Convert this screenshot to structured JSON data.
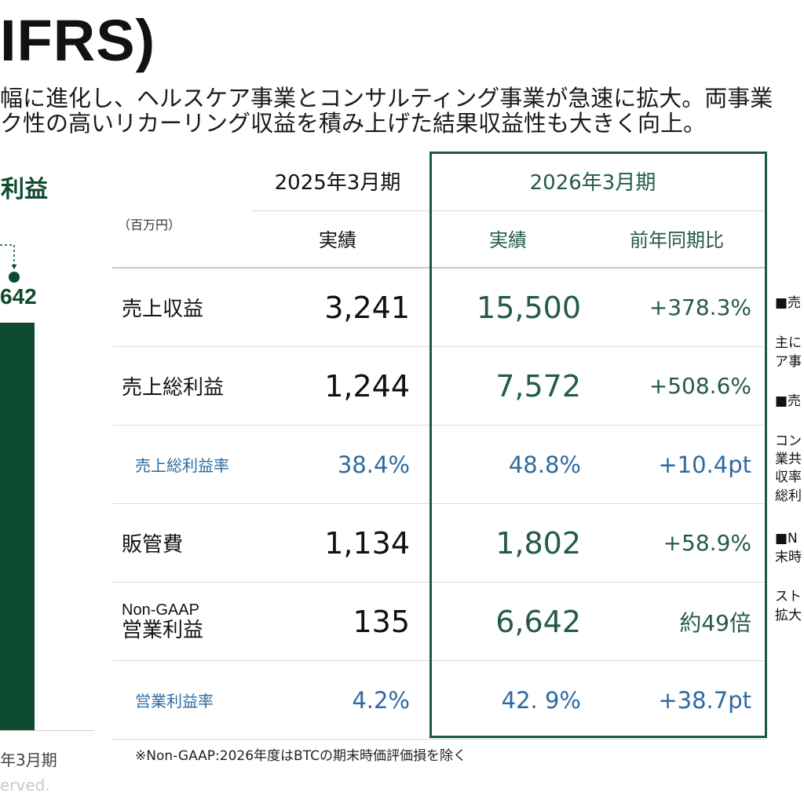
{
  "title": "IFRS)",
  "summary": {
    "line1": "幅に進化し、ヘルスケア事業とコンサルティング事業が急速に拡大。両事業",
    "line2": "ク性の高いリカーリング収益を積み上げた結果収益性も大きく向上。"
  },
  "left_chart": {
    "heading": "利益",
    "value_label": "642",
    "period_label": "年3月期",
    "copyright": "erved."
  },
  "table": {
    "unit": "（百万円）",
    "prev_period": "2025年3月期",
    "curr_period": "2026年3月期",
    "prev_actual": "実績",
    "curr_actual": "実績",
    "yoy_header": "前年同期比",
    "rows": [
      {
        "label": "売上収益",
        "prev": "3,241",
        "curr": "15,500",
        "yoy": "+378.3%"
      },
      {
        "label": "売上総利益",
        "prev": "1,244",
        "curr": "7,572",
        "yoy": "+508.6%"
      },
      {
        "label": "売上総利益率",
        "prev": "38.4%",
        "curr": "48.8%",
        "yoy": "+10.4pt"
      },
      {
        "label": "販管費",
        "prev": "1,134",
        "curr": "1,802",
        "yoy": "+58.9%"
      },
      {
        "label_prefix": "Non-GAAP",
        "label": "営業利益",
        "prev": "135",
        "curr": "6,642",
        "yoy": "約49倍"
      },
      {
        "label": "営業利益率",
        "prev": "4.2%",
        "curr": "42. 9%",
        "yoy": "+38.7pt"
      }
    ],
    "footnote": "※Non-GAAP:2026年度はBTCの期末時価評価損を除く"
  },
  "side_notes": [
    "■売",
    "主に",
    "ア事",
    "■売",
    "コン",
    "業共",
    "収率",
    "総利",
    "■N",
    "末時",
    "スト",
    "拡大"
  ],
  "colors": {
    "brand_green": "#0f4b30",
    "value_green": "#235c43",
    "rate_blue": "#2e6aa0",
    "box_border": "#1d5b3f"
  }
}
